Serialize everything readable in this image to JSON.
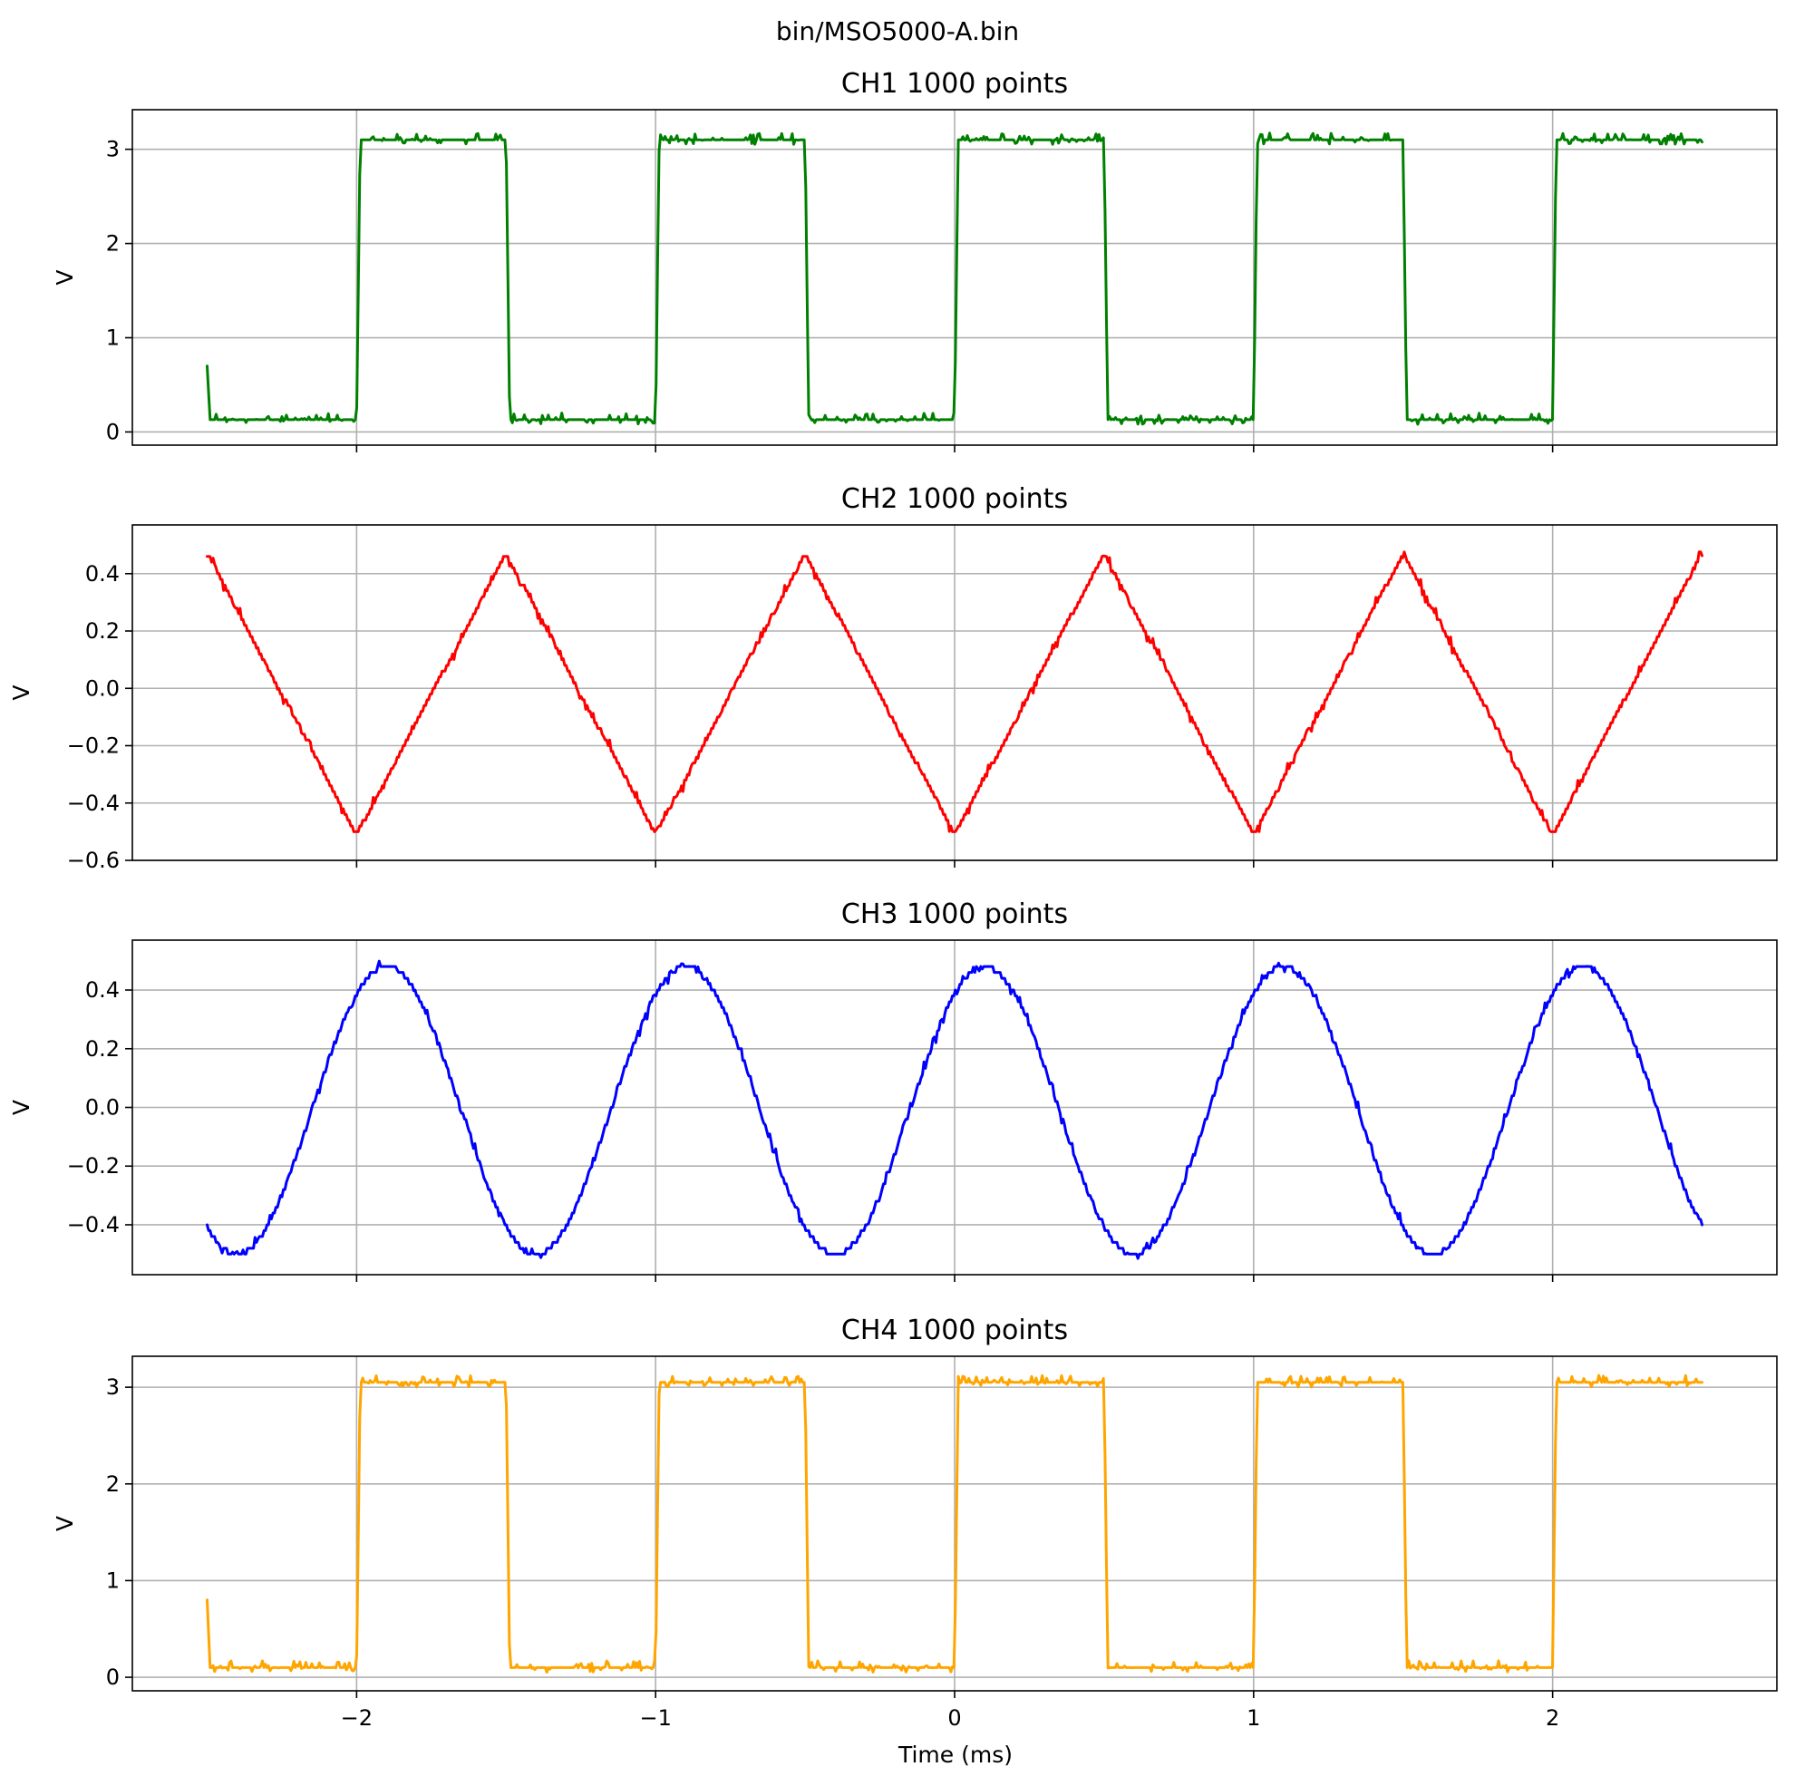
{
  "figure": {
    "suptitle": "bin/MSO5000-A.bin",
    "xlabel": "Time (ms)"
  },
  "chart_data": [
    {
      "type": "line",
      "title": "CH1  1000 points",
      "ylabel": "V",
      "color": "#008000",
      "waveform": "square",
      "x_range": [
        -2.5,
        2.5
      ],
      "xlim": [
        -2.75,
        2.75
      ],
      "ylim": [
        -0.14,
        3.42
      ],
      "yticks": [
        0,
        1,
        2,
        3
      ],
      "ytick_labels": [
        "0",
        "1",
        "2",
        "3"
      ],
      "xticks": [
        -2,
        -1,
        0,
        1,
        2
      ],
      "low_level": 0.13,
      "high_level": 3.1,
      "initial_value": 0.7,
      "transitions_ms": [
        -2.0,
        -1.5,
        -1.0,
        -0.5,
        0.0,
        0.5,
        1.0,
        1.5,
        2.0
      ],
      "start_state": "low",
      "points": 1000
    },
    {
      "type": "line",
      "title": "CH2  1000 points",
      "ylabel": "V",
      "color": "#ff0000",
      "waveform": "triangle",
      "x_range": [
        -2.5,
        2.5
      ],
      "xlim": [
        -2.75,
        2.75
      ],
      "ylim": [
        -0.6,
        0.57
      ],
      "yticks": [
        -0.6,
        -0.4,
        -0.2,
        0.0,
        0.2,
        0.4
      ],
      "ytick_labels": [
        "−0.6",
        "−0.4",
        "−0.2",
        "0.0",
        "0.2",
        "0.4"
      ],
      "xticks": [
        -2,
        -1,
        0,
        1,
        2
      ],
      "amplitude": 0.49,
      "offset": -0.02,
      "period_ms": 1.0,
      "peak_at_ms": -1.5,
      "points": 1000
    },
    {
      "type": "line",
      "title": "CH3  1000 points",
      "ylabel": "V",
      "color": "#0000ff",
      "waveform": "sine",
      "x_range": [
        -2.5,
        2.5
      ],
      "xlim": [
        -2.75,
        2.75
      ],
      "ylim": [
        -0.57,
        0.57
      ],
      "yticks": [
        -0.4,
        -0.2,
        0.0,
        0.2,
        0.4
      ],
      "ytick_labels": [
        "−0.4",
        "−0.2",
        "0.0",
        "0.2",
        "0.4"
      ],
      "xticks": [
        -2,
        -1,
        0,
        1,
        2
      ],
      "amplitude": 0.49,
      "offset": -0.01,
      "period_ms": 1.0,
      "peak_at_ms": -1.9,
      "points": 1000
    },
    {
      "type": "line",
      "title": "CH4  1000 points",
      "ylabel": "V",
      "color": "#ffa500",
      "waveform": "square",
      "x_range": [
        -2.5,
        2.5
      ],
      "xlim": [
        -2.75,
        2.75
      ],
      "ylim": [
        -0.14,
        3.32
      ],
      "yticks": [
        0,
        1,
        2,
        3
      ],
      "ytick_labels": [
        "0",
        "1",
        "2",
        "3"
      ],
      "xticks": [
        -2,
        -1,
        0,
        1,
        2
      ],
      "xtick_labels": [
        "−2",
        "−1",
        "0",
        "1",
        "2"
      ],
      "low_level": 0.1,
      "high_level": 3.05,
      "initial_value": 0.8,
      "transitions_ms": [
        -2.0,
        -1.5,
        -1.0,
        -0.5,
        0.0,
        0.5,
        1.0,
        1.5,
        2.0
      ],
      "start_state": "low",
      "points": 1000
    }
  ]
}
